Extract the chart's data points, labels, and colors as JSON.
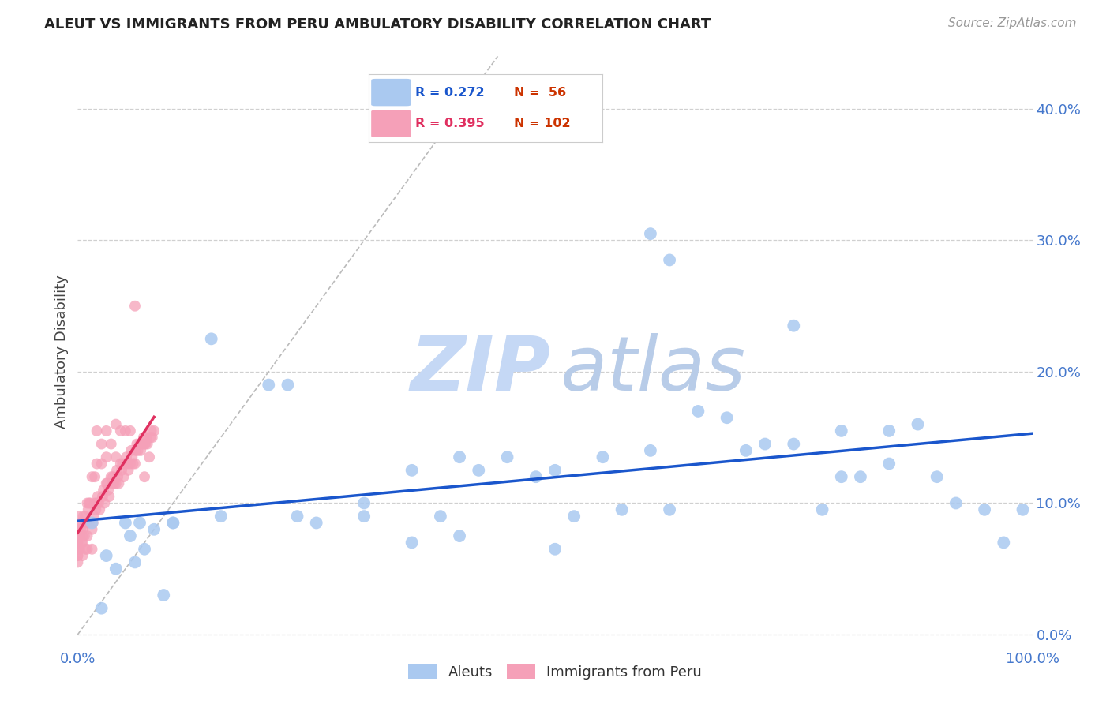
{
  "title": "ALEUT VS IMMIGRANTS FROM PERU AMBULATORY DISABILITY CORRELATION CHART",
  "source": "Source: ZipAtlas.com",
  "ylabel": "Ambulatory Disability",
  "ytick_labels": [
    "0.0%",
    "10.0%",
    "20.0%",
    "30.0%",
    "40.0%"
  ],
  "ytick_values": [
    0.0,
    0.1,
    0.2,
    0.3,
    0.4
  ],
  "xlim": [
    0.0,
    1.0
  ],
  "ylim": [
    -0.01,
    0.44
  ],
  "legend_blue_r": "R = 0.272",
  "legend_blue_n": "N =  56",
  "legend_pink_r": "R = 0.395",
  "legend_pink_n": "N = 102",
  "blue_color": "#aac9f0",
  "blue_line_color": "#1a56cc",
  "pink_color": "#f5a0b8",
  "pink_line_color": "#e03060",
  "watermark_zip_color": "#c5d8f5",
  "watermark_atlas_color": "#b8cce8",
  "grid_color": "#d0d0d0",
  "background_color": "#ffffff",
  "tick_color": "#4477cc",
  "aleuts_x": [
    0.015,
    0.025,
    0.03,
    0.04,
    0.05,
    0.055,
    0.06,
    0.065,
    0.07,
    0.08,
    0.09,
    0.1,
    0.14,
    0.22,
    0.23,
    0.3,
    0.35,
    0.38,
    0.4,
    0.42,
    0.45,
    0.48,
    0.5,
    0.52,
    0.55,
    0.57,
    0.6,
    0.6,
    0.62,
    0.62,
    0.65,
    0.68,
    0.7,
    0.72,
    0.75,
    0.75,
    0.78,
    0.8,
    0.8,
    0.82,
    0.85,
    0.85,
    0.88,
    0.9,
    0.92,
    0.95,
    0.97,
    0.99,
    0.1,
    0.15,
    0.2,
    0.25,
    0.3,
    0.35,
    0.4,
    0.5
  ],
  "aleuts_y": [
    0.085,
    0.02,
    0.06,
    0.05,
    0.085,
    0.075,
    0.055,
    0.085,
    0.065,
    0.08,
    0.03,
    0.085,
    0.225,
    0.19,
    0.09,
    0.09,
    0.125,
    0.09,
    0.135,
    0.125,
    0.135,
    0.12,
    0.125,
    0.09,
    0.135,
    0.095,
    0.305,
    0.14,
    0.285,
    0.095,
    0.17,
    0.165,
    0.14,
    0.145,
    0.235,
    0.145,
    0.095,
    0.155,
    0.12,
    0.12,
    0.155,
    0.13,
    0.16,
    0.12,
    0.1,
    0.095,
    0.07,
    0.095,
    0.085,
    0.09,
    0.19,
    0.085,
    0.1,
    0.07,
    0.075,
    0.065
  ],
  "peru_x": [
    0.0,
    0.0,
    0.0,
    0.0,
    0.0,
    0.0,
    0.0,
    0.0,
    0.0,
    0.0,
    0.002,
    0.002,
    0.003,
    0.003,
    0.004,
    0.005,
    0.005,
    0.005,
    0.005,
    0.005,
    0.006,
    0.007,
    0.008,
    0.008,
    0.009,
    0.01,
    0.01,
    0.01,
    0.011,
    0.012,
    0.012,
    0.013,
    0.015,
    0.015,
    0.015,
    0.016,
    0.017,
    0.018,
    0.018,
    0.019,
    0.02,
    0.02,
    0.02,
    0.021,
    0.022,
    0.023,
    0.025,
    0.025,
    0.026,
    0.027,
    0.028,
    0.03,
    0.03,
    0.03,
    0.031,
    0.032,
    0.033,
    0.035,
    0.035,
    0.036,
    0.037,
    0.038,
    0.04,
    0.04,
    0.04,
    0.041,
    0.042,
    0.043,
    0.045,
    0.045,
    0.046,
    0.047,
    0.048,
    0.05,
    0.05,
    0.051,
    0.052,
    0.053,
    0.055,
    0.055,
    0.056,
    0.057,
    0.058,
    0.06,
    0.06,
    0.061,
    0.062,
    0.063,
    0.065,
    0.066,
    0.068,
    0.069,
    0.07,
    0.07,
    0.071,
    0.072,
    0.073,
    0.075,
    0.076,
    0.077,
    0.078,
    0.08
  ],
  "peru_y": [
    0.06,
    0.07,
    0.065,
    0.075,
    0.055,
    0.09,
    0.065,
    0.07,
    0.06,
    0.08,
    0.065,
    0.075,
    0.08,
    0.085,
    0.07,
    0.075,
    0.08,
    0.085,
    0.07,
    0.06,
    0.09,
    0.075,
    0.065,
    0.09,
    0.085,
    0.1,
    0.075,
    0.065,
    0.095,
    0.085,
    0.1,
    0.1,
    0.12,
    0.08,
    0.065,
    0.085,
    0.09,
    0.1,
    0.12,
    0.095,
    0.155,
    0.13,
    0.1,
    0.105,
    0.1,
    0.095,
    0.145,
    0.13,
    0.105,
    0.11,
    0.1,
    0.155,
    0.135,
    0.115,
    0.115,
    0.11,
    0.105,
    0.145,
    0.12,
    0.115,
    0.12,
    0.115,
    0.16,
    0.135,
    0.115,
    0.125,
    0.12,
    0.115,
    0.155,
    0.13,
    0.125,
    0.13,
    0.12,
    0.155,
    0.13,
    0.135,
    0.13,
    0.125,
    0.155,
    0.13,
    0.14,
    0.135,
    0.13,
    0.25,
    0.13,
    0.14,
    0.145,
    0.14,
    0.145,
    0.14,
    0.145,
    0.15,
    0.145,
    0.12,
    0.145,
    0.15,
    0.145,
    0.135,
    0.15,
    0.155,
    0.15,
    0.155
  ]
}
